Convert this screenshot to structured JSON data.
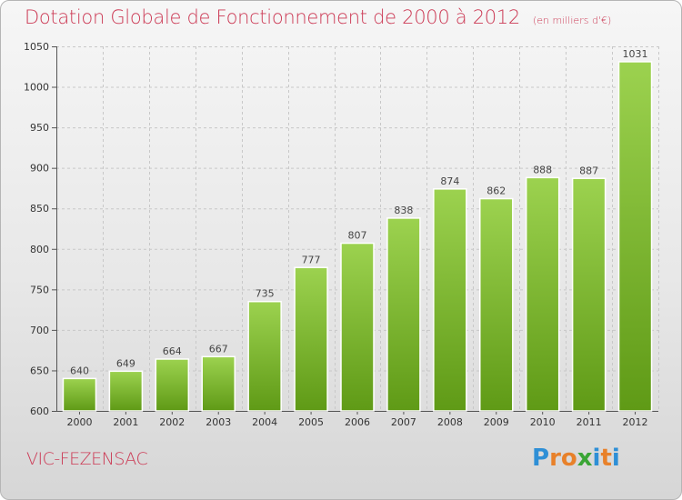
{
  "header": {
    "title": "Dotation Globale de Fonctionnement de 2000 à 2012",
    "subtitle": "(en milliers d'€)"
  },
  "footer": {
    "commune": "VIC-FEZENSAC",
    "logo_letters": [
      "P",
      "r",
      "o",
      "x",
      "i",
      "t",
      "i"
    ],
    "logo_colors": [
      "#2e8fd6",
      "#e8812a",
      "#e8812a",
      "#3aa535",
      "#2e8fd6",
      "#e8812a",
      "#2e8fd6"
    ]
  },
  "chart_data": {
    "type": "bar",
    "title": "Dotation Globale de Fonctionnement de 2000 à 2012",
    "subtitle": "(en milliers d'€)",
    "categories": [
      "2000",
      "2001",
      "2002",
      "2003",
      "2004",
      "2005",
      "2006",
      "2007",
      "2008",
      "2009",
      "2010",
      "2011",
      "2012"
    ],
    "values": [
      640,
      649,
      664,
      667,
      735,
      777,
      807,
      838,
      874,
      862,
      888,
      887,
      1031
    ],
    "data_labels": [
      "640",
      "649",
      "664",
      "667",
      "735",
      "777",
      "807",
      "838",
      "874",
      "862",
      "888",
      "887",
      "1031"
    ],
    "ylim": [
      600,
      1050
    ],
    "yticks": [
      600,
      650,
      700,
      750,
      800,
      850,
      900,
      950,
      1000,
      1050
    ],
    "grid": true,
    "bar_color_top": "#9cd24f",
    "bar_color_bottom": "#5f9a16"
  }
}
